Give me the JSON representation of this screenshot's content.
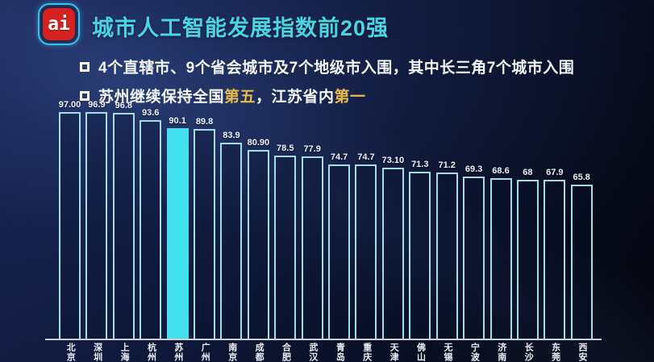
{
  "header": {
    "logo_text": "ai",
    "title": "城市人工智能发展指数前20强"
  },
  "bullets": {
    "item1": "4个直辖市、9个省会城市及7个地级市入围，其中长三角7个城市入围",
    "item2_prefix": "苏州继续保持全国",
    "item2_highlight1": "第五",
    "item2_middle": "，江苏省内",
    "item2_highlight2": "第一"
  },
  "chart_data": {
    "type": "bar",
    "title": "城市人工智能发展指数前20强",
    "categories": [
      "北京",
      "深圳",
      "上海",
      "杭州",
      "苏州",
      "广州",
      "南京",
      "成都",
      "合肥",
      "武汉",
      "青岛",
      "重庆",
      "天津",
      "佛山",
      "无锡",
      "宁波",
      "济南",
      "长沙",
      "东莞",
      "西安"
    ],
    "values": [
      97.0,
      96.9,
      96.8,
      93.6,
      90.1,
      89.8,
      83.9,
      80.9,
      78.5,
      77.9,
      74.7,
      74.7,
      73.1,
      71.3,
      71.2,
      69.3,
      68.6,
      68,
      67.9,
      65.8
    ],
    "value_labels": [
      "97.00",
      "96.9",
      "96.8",
      "93.6",
      "90.1",
      "89.8",
      "83.9",
      "80.90",
      "78.5",
      "77.9",
      "74.7",
      "74.7",
      "73.10",
      "71.3",
      "71.2",
      "69.3",
      "68.6",
      "68",
      "67.9",
      "65.8"
    ],
    "highlighted_category": "苏州",
    "highlighted_index": 4,
    "ylim": [
      0,
      97
    ],
    "grid": false,
    "legend": false,
    "xlabel": "",
    "ylabel": "",
    "bar_style": "outlined",
    "highlight_style": "solid-fill"
  },
  "colors": {
    "accent_cyan": "#49d6e4",
    "bar_outline": "#a3dde9",
    "bar_highlight_fill": "#43e0ee",
    "gold_highlight": "#e8b94c",
    "logo_red": "#d3221f",
    "logo_ring_cyan": "#3fc0e8",
    "background_dark": "#0a1130",
    "baseline": "#c9d0da",
    "text_white": "#f5f7fa"
  }
}
